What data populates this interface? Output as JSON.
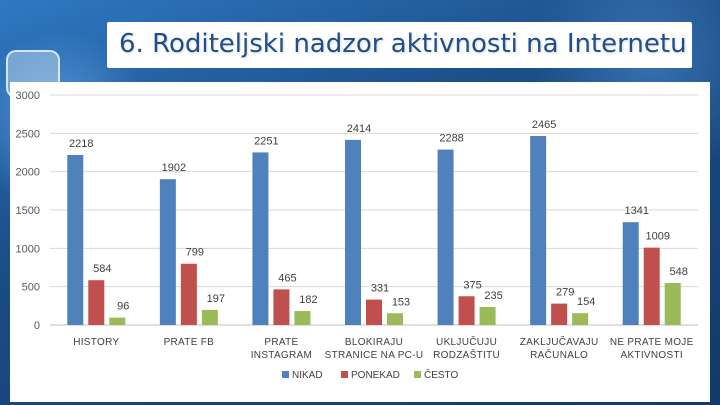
{
  "title": "6. Roditeljski nadzor aktivnosti na Internetu",
  "chart_data": {
    "type": "bar",
    "categories": [
      [
        "HISTORY"
      ],
      [
        "PRATE FB"
      ],
      [
        "PRATE",
        "INSTAGRAM"
      ],
      [
        "BLOKIRAJU",
        "STRANICE NA PC-U"
      ],
      [
        "UKLJUČUJU",
        "RODZAŠTITU"
      ],
      [
        "ZAKLJUČAVAJU",
        "RAČUNALO"
      ],
      [
        "NE PRATE MOJE",
        "AKTIVNOSTI"
      ]
    ],
    "series": [
      {
        "name": "NIKAD",
        "color": "#4f81bd",
        "values": [
          2218,
          1902,
          2251,
          2414,
          2288,
          2465,
          1341
        ]
      },
      {
        "name": "PONEKAD",
        "color": "#c0504d",
        "values": [
          584,
          799,
          465,
          331,
          375,
          279,
          1009
        ]
      },
      {
        "name": "ČESTO",
        "color": "#9bbb59",
        "values": [
          96,
          197,
          182,
          153,
          235,
          154,
          548
        ]
      }
    ],
    "ylim": [
      0,
      3000
    ],
    "yticks": [
      0,
      500,
      1000,
      1500,
      2000,
      2500,
      3000
    ],
    "grid": true,
    "legend": "bottom"
  }
}
